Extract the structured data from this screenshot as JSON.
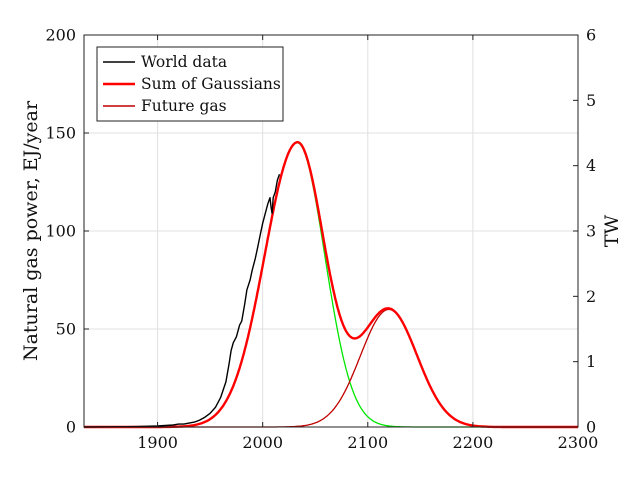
{
  "chart_data": {
    "type": "line",
    "title": "",
    "xlabel": "",
    "ylabel": "Natural gas power, EJ/year",
    "ylabel_right": "TW",
    "xlim": [
      1830,
      2300
    ],
    "ylim": [
      0,
      200
    ],
    "ylim_right": [
      0,
      6
    ],
    "xticks": [
      1900,
      2000,
      2100,
      2200,
      2300
    ],
    "yticks": [
      0,
      50,
      100,
      150,
      200
    ],
    "yticks_right": [
      0,
      1,
      2,
      3,
      4,
      5,
      6
    ],
    "grid": true,
    "legend_position": "top-left",
    "colors": {
      "world": "#000000",
      "sum": "#ff0000",
      "future": "#c00000",
      "green": "#00e600",
      "grid": "#e0e0e0",
      "axis": "#222222"
    },
    "series": [
      {
        "name": "World data",
        "key": "world",
        "x": [
          1830,
          1880,
          1900,
          1915,
          1920,
          1925,
          1930,
          1935,
          1940,
          1945,
          1950,
          1955,
          1960,
          1965,
          1968,
          1970,
          1972,
          1975,
          1978,
          1980,
          1983,
          1985,
          1988,
          1990,
          1993,
          1995,
          1998,
          2000,
          2003,
          2005,
          2007,
          2008,
          2009,
          2010,
          2012,
          2014,
          2016
        ],
        "values": [
          0,
          0.2,
          0.5,
          1,
          1.5,
          1.5,
          2,
          2.5,
          3.5,
          5,
          7,
          10,
          15,
          23,
          32,
          39,
          43,
          46,
          52,
          54,
          63,
          70,
          75,
          80,
          86,
          91,
          99,
          104,
          110,
          114,
          117,
          112,
          109,
          117,
          120,
          126,
          129
        ]
      },
      {
        "name": "Sum of Gaussians",
        "key": "sum",
        "peak": 148,
        "peak_year": 2035
      },
      {
        "name": "Future gas",
        "key": "future",
        "peak": 60,
        "peak_year": 2120,
        "sigma": 27
      },
      {
        "name": "",
        "key": "green",
        "peak": 145,
        "peak_year": 2033,
        "sigma_left": 31,
        "sigma_right": 26
      }
    ],
    "legend": [
      {
        "label": "World data",
        "key": "world"
      },
      {
        "label": "Sum of Gaussians",
        "key": "sum"
      },
      {
        "label": "Future gas",
        "key": "future"
      }
    ]
  }
}
